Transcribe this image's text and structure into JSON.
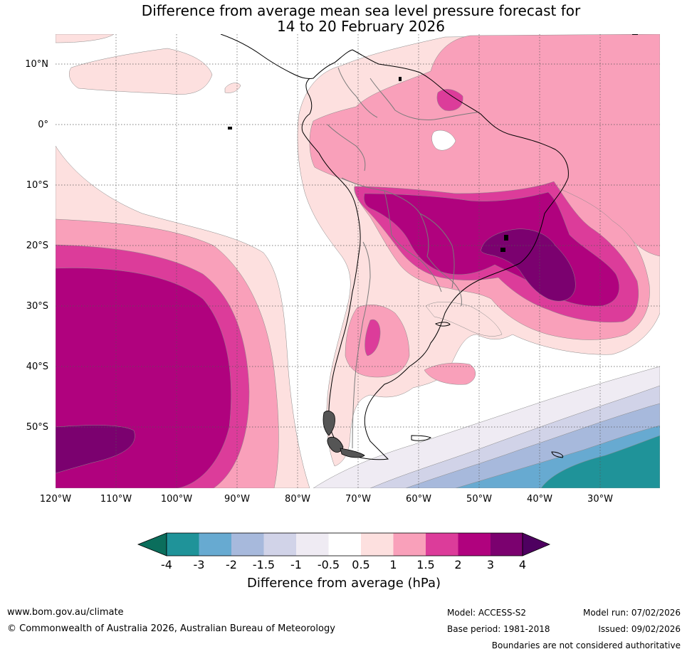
{
  "title": {
    "line1": "Difference from average mean sea level pressure forecast for",
    "line2": "14 to 20 February 2026"
  },
  "map": {
    "lat_labels": [
      "10°N",
      "0°",
      "10°S",
      "20°S",
      "30°S",
      "40°S",
      "50°S"
    ],
    "lon_labels": [
      "120°W",
      "110°W",
      "100°W",
      "90°W",
      "80°W",
      "70°W",
      "60°W",
      "50°W",
      "40°W",
      "30°W"
    ]
  },
  "colorbar": {
    "title": "Difference from average (hPa)",
    "ticks": [
      "-4",
      "-3",
      "-2",
      "-1.5",
      "-1",
      "-0.5",
      "0.5",
      "1",
      "1.5",
      "2",
      "3",
      "4"
    ],
    "colors": [
      "#0b6e5c",
      "#1f9399",
      "#67aad1",
      "#a7b9dc",
      "#d1d3e8",
      "#efebf3",
      "#ffffff",
      "#fde0df",
      "#f9a0ba",
      "#dc3c9a",
      "#b0027e",
      "#7b016f",
      "#4e0060"
    ]
  },
  "footer": {
    "url": "www.bom.gov.au/climate",
    "copyright": "© Commonwealth of Australia 2026, Australian Bureau of Meteorology",
    "model": "Model: ACCESS-S2",
    "base_period": "Base period: 1981-2018",
    "model_run": "Model run: 07/02/2026",
    "issued": "Issued: 09/02/2026",
    "disclaimer": "Boundaries are not considered authoritative"
  }
}
